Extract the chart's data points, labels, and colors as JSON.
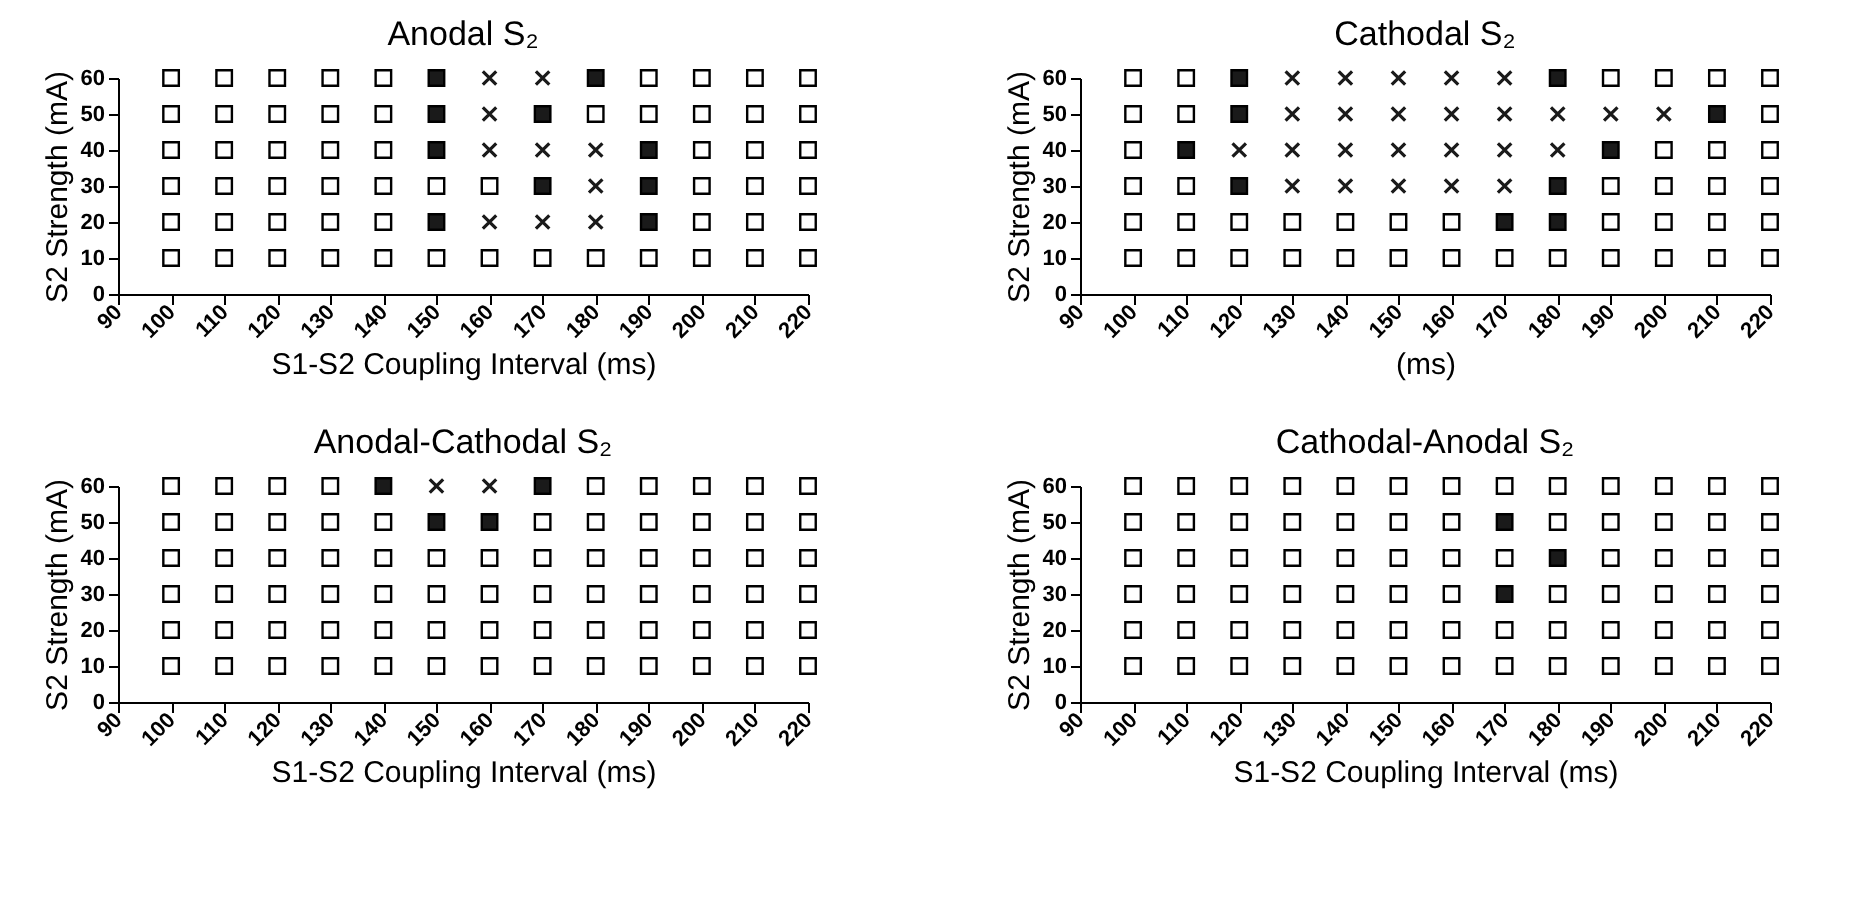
{
  "chart_data": [
    {
      "type": "scatter",
      "title": "Anodal S₂",
      "xlabel": "S1-S2 Coupling Interval (ms)",
      "ylabel": "S2 Strength (mA)",
      "xlim": [
        90,
        220
      ],
      "xticks": [
        90,
        100,
        110,
        120,
        130,
        140,
        150,
        160,
        170,
        180,
        190,
        200,
        210,
        220
      ],
      "ylim": [
        0,
        60
      ],
      "yticks": [
        0,
        10,
        20,
        30,
        40,
        50,
        60
      ],
      "series": [
        {
          "color": "#ffffff",
          "marker": "square",
          "x": [
            100,
            110,
            120,
            130,
            140,
            190,
            200,
            210,
            220,
            100,
            110,
            120,
            130,
            140,
            180,
            190,
            200,
            210,
            220,
            100,
            110,
            120,
            130,
            140,
            200,
            210,
            220,
            100,
            110,
            120,
            130,
            140,
            150,
            160,
            200,
            210,
            220,
            100,
            110,
            120,
            130,
            140,
            200,
            210,
            220,
            100,
            110,
            120,
            130,
            140,
            150,
            160,
            170,
            180,
            190,
            200,
            210,
            220
          ],
          "values": [
            60,
            60,
            60,
            60,
            60,
            60,
            60,
            60,
            60,
            50,
            50,
            50,
            50,
            50,
            50,
            50,
            50,
            50,
            50,
            40,
            40,
            40,
            40,
            40,
            40,
            40,
            40,
            30,
            30,
            30,
            30,
            30,
            30,
            30,
            30,
            30,
            30,
            20,
            20,
            20,
            20,
            20,
            20,
            20,
            20,
            10,
            10,
            10,
            10,
            10,
            10,
            10,
            10,
            10,
            10,
            10,
            10,
            10
          ]
        },
        {
          "color": "#1a1a1a",
          "marker": "square",
          "x": [
            150,
            180,
            150,
            170,
            150,
            190,
            170,
            190,
            150,
            190
          ],
          "values": [
            60,
            60,
            50,
            50,
            40,
            40,
            30,
            30,
            20,
            20
          ]
        },
        {
          "color": "#1a1a1a",
          "marker": "cross",
          "x": [
            160,
            170,
            160,
            160,
            170,
            180,
            180,
            160,
            170,
            180
          ],
          "values": [
            60,
            60,
            50,
            40,
            40,
            40,
            30,
            20,
            20,
            20
          ]
        }
      ]
    },
    {
      "type": "scatter",
      "title": "Cathodal S₂",
      "xlabel": "(ms)",
      "ylabel": "S2 Strength (mA)",
      "xlim": [
        90,
        220
      ],
      "xticks": [
        90,
        100,
        110,
        120,
        130,
        140,
        150,
        160,
        170,
        180,
        190,
        200,
        210,
        220
      ],
      "ylim": [
        0,
        60
      ],
      "yticks": [
        0,
        10,
        20,
        30,
        40,
        50,
        60
      ],
      "series": [
        {
          "color": "#ffffff",
          "marker": "square",
          "x": [
            100,
            110,
            190,
            200,
            210,
            220,
            100,
            110,
            220,
            100,
            200,
            210,
            220,
            100,
            110,
            190,
            200,
            210,
            220,
            100,
            110,
            120,
            130,
            140,
            150,
            160,
            190,
            200,
            210,
            220,
            100,
            110,
            120,
            130,
            140,
            150,
            160,
            170,
            180,
            190,
            200,
            210,
            220
          ],
          "values": [
            60,
            60,
            60,
            60,
            60,
            60,
            50,
            50,
            50,
            40,
            40,
            40,
            40,
            30,
            30,
            30,
            30,
            30,
            30,
            20,
            20,
            20,
            20,
            20,
            20,
            20,
            20,
            20,
            20,
            20,
            10,
            10,
            10,
            10,
            10,
            10,
            10,
            10,
            10,
            10,
            10,
            10,
            10
          ]
        },
        {
          "color": "#1a1a1a",
          "marker": "square",
          "x": [
            120,
            180,
            120,
            210,
            110,
            190,
            120,
            180,
            170,
            180
          ],
          "values": [
            60,
            60,
            50,
            50,
            40,
            40,
            30,
            30,
            20,
            20
          ]
        },
        {
          "color": "#1a1a1a",
          "marker": "cross",
          "x": [
            130,
            140,
            150,
            160,
            170,
            130,
            140,
            150,
            160,
            170,
            180,
            190,
            200,
            120,
            130,
            140,
            150,
            160,
            170,
            180,
            130,
            140,
            150,
            160,
            170
          ],
          "values": [
            60,
            60,
            60,
            60,
            60,
            50,
            50,
            50,
            50,
            50,
            50,
            50,
            50,
            40,
            40,
            40,
            40,
            40,
            40,
            40,
            30,
            30,
            30,
            30,
            30
          ]
        }
      ]
    },
    {
      "type": "scatter",
      "title": "Anodal-Cathodal S₂",
      "xlabel": "S1-S2 Coupling Interval (ms)",
      "ylabel": "S2 Strength (mA)",
      "xlim": [
        90,
        220
      ],
      "xticks": [
        90,
        100,
        110,
        120,
        130,
        140,
        150,
        160,
        170,
        180,
        190,
        200,
        210,
        220
      ],
      "ylim": [
        0,
        60
      ],
      "yticks": [
        0,
        10,
        20,
        30,
        40,
        50,
        60
      ],
      "series": [
        {
          "color": "#ffffff",
          "marker": "square",
          "x": [
            100,
            110,
            120,
            130,
            180,
            190,
            200,
            210,
            220,
            100,
            110,
            120,
            130,
            140,
            170,
            180,
            190,
            200,
            210,
            220,
            100,
            110,
            120,
            130,
            140,
            150,
            160,
            170,
            180,
            190,
            200,
            210,
            220,
            100,
            110,
            120,
            130,
            140,
            150,
            160,
            170,
            180,
            190,
            200,
            210,
            220,
            100,
            110,
            120,
            130,
            140,
            150,
            160,
            170,
            180,
            190,
            200,
            210,
            220,
            100,
            110,
            120,
            130,
            140,
            150,
            160,
            170,
            180,
            190,
            200,
            210,
            220
          ],
          "values": [
            60,
            60,
            60,
            60,
            60,
            60,
            60,
            60,
            60,
            50,
            50,
            50,
            50,
            50,
            50,
            50,
            50,
            50,
            50,
            50,
            40,
            40,
            40,
            40,
            40,
            40,
            40,
            40,
            40,
            40,
            40,
            40,
            40,
            30,
            30,
            30,
            30,
            30,
            30,
            30,
            30,
            30,
            30,
            30,
            30,
            30,
            20,
            20,
            20,
            20,
            20,
            20,
            20,
            20,
            20,
            20,
            20,
            20,
            20,
            10,
            10,
            10,
            10,
            10,
            10,
            10,
            10,
            10,
            10,
            10,
            10,
            10
          ]
        },
        {
          "color": "#1a1a1a",
          "marker": "square",
          "x": [
            140,
            170,
            150,
            160
          ],
          "values": [
            60,
            60,
            50,
            50
          ]
        },
        {
          "color": "#1a1a1a",
          "marker": "cross",
          "x": [
            150,
            160
          ],
          "values": [
            60,
            60
          ]
        }
      ]
    },
    {
      "type": "scatter",
      "title": "Cathodal-Anodal S₂",
      "xlabel": "S1-S2 Coupling Interval (ms)",
      "ylabel": "S2 Strength (mA)",
      "xlim": [
        90,
        220
      ],
      "xticks": [
        90,
        100,
        110,
        120,
        130,
        140,
        150,
        160,
        170,
        180,
        190,
        200,
        210,
        220
      ],
      "ylim": [
        0,
        60
      ],
      "yticks": [
        0,
        10,
        20,
        30,
        40,
        50,
        60
      ],
      "series": [
        {
          "color": "#ffffff",
          "marker": "square",
          "x": [
            100,
            110,
            120,
            130,
            140,
            150,
            160,
            170,
            180,
            190,
            200,
            210,
            220,
            100,
            110,
            120,
            130,
            140,
            150,
            160,
            180,
            190,
            200,
            210,
            220,
            100,
            110,
            120,
            130,
            140,
            150,
            160,
            170,
            190,
            200,
            210,
            220,
            100,
            110,
            120,
            130,
            140,
            150,
            160,
            180,
            190,
            200,
            210,
            220,
            100,
            110,
            120,
            130,
            140,
            150,
            160,
            170,
            180,
            190,
            200,
            210,
            220,
            100,
            110,
            120,
            130,
            140,
            150,
            160,
            170,
            180,
            190,
            200,
            210,
            220
          ],
          "values": [
            60,
            60,
            60,
            60,
            60,
            60,
            60,
            60,
            60,
            60,
            60,
            60,
            60,
            50,
            50,
            50,
            50,
            50,
            50,
            50,
            50,
            50,
            50,
            50,
            50,
            40,
            40,
            40,
            40,
            40,
            40,
            40,
            40,
            40,
            40,
            40,
            40,
            30,
            30,
            30,
            30,
            30,
            30,
            30,
            30,
            30,
            30,
            30,
            30,
            20,
            20,
            20,
            20,
            20,
            20,
            20,
            20,
            20,
            20,
            20,
            20,
            20,
            10,
            10,
            10,
            10,
            10,
            10,
            10,
            10,
            10,
            10,
            10,
            10,
            10
          ]
        },
        {
          "color": "#1a1a1a",
          "marker": "square",
          "x": [
            170,
            180,
            170
          ],
          "values": [
            50,
            40,
            30
          ]
        }
      ]
    }
  ]
}
